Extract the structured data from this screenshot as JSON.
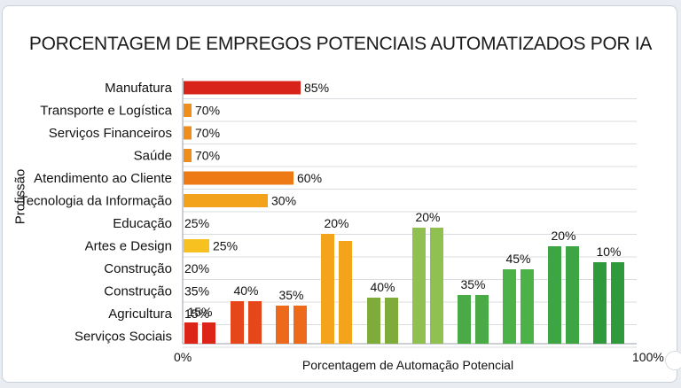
{
  "chart_data": {
    "type": "bar",
    "title": "PORCENTAGEM DE EMPREGOS POTENCIAIS AUTOMATIZADOS POR IA",
    "xlabel": "Porcentagem de Automação Potencial",
    "ylabel": "Profissão",
    "xlim": [
      0,
      100
    ],
    "x_ticks": [
      "0%",
      "100%"
    ],
    "grid": true,
    "horizontal_bars": {
      "categories": [
        "Manufatura",
        "Transporte e Logística",
        "Serviços Financeiros",
        "Saúde",
        "Atendimento ao Cliente",
        "Tecnologia da Informação",
        "Educação",
        "Artes e Design",
        "Construção",
        "Construção",
        "Agricultura",
        "Serviços Sociais"
      ],
      "values": [
        85,
        70,
        70,
        70,
        60,
        30,
        25,
        25,
        20,
        35,
        15,
        null
      ],
      "value_labels": [
        "85%",
        "70%",
        "70%",
        "70%",
        "60%",
        "30%",
        "25%",
        "25%",
        "20%",
        "35%",
        "15%",
        ""
      ],
      "colors": [
        "#d8231a",
        "#ef8e1c",
        "#ef8e1c",
        "#ef8e1c",
        "#ee7a16",
        "#f3a21c",
        null,
        "#f7c11f",
        null,
        null,
        null,
        null
      ]
    },
    "vertical_bars": {
      "labels": [
        "15%",
        "40%",
        "35%",
        "20%",
        "40%",
        "20%",
        "35%",
        "45%",
        "20%",
        "10%"
      ],
      "colors": [
        "#dd2418",
        "#e5461a",
        "#ec6a1a",
        "#f3a41a",
        "#7fab3a",
        "#8fc050",
        "#4aaa45",
        "#4cb247",
        "#3ea544",
        "#2e9a3c"
      ]
    }
  }
}
